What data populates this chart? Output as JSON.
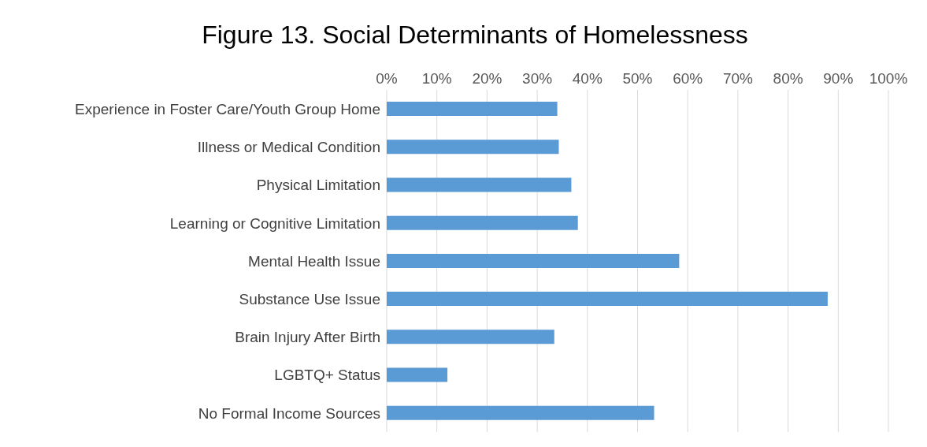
{
  "chart_data": {
    "type": "bar",
    "orientation": "horizontal",
    "title": "Figure 13. Social Determinants of Homelessness",
    "categories": [
      "Experience in Foster Care/Youth Group Home",
      "Illness or Medical Condition",
      "Physical Limitation",
      "Learning or Cognitive Limitation",
      "Mental Health Issue",
      "Substance Use Issue",
      "Brain Injury After Birth",
      "LGBTQ+ Status",
      "No Formal Income Sources"
    ],
    "values": [
      34,
      34.3,
      36.8,
      38.1,
      58.3,
      87.9,
      33.4,
      12.1,
      53.3
    ],
    "color": "#5b9bd5",
    "xlim": [
      0,
      100
    ],
    "xticks": [
      {
        "value": 0,
        "label": "0%"
      },
      {
        "value": 10,
        "label": "10%"
      },
      {
        "value": 20,
        "label": "20%"
      },
      {
        "value": 30,
        "label": "30%"
      },
      {
        "value": 40,
        "label": "40%"
      },
      {
        "value": 50,
        "label": "50%"
      },
      {
        "value": 60,
        "label": "60%"
      },
      {
        "value": 70,
        "label": "70%"
      },
      {
        "value": 80,
        "label": "80%"
      },
      {
        "value": 90,
        "label": "90%"
      },
      {
        "value": 100,
        "label": "100%"
      }
    ],
    "grid": "x"
  }
}
